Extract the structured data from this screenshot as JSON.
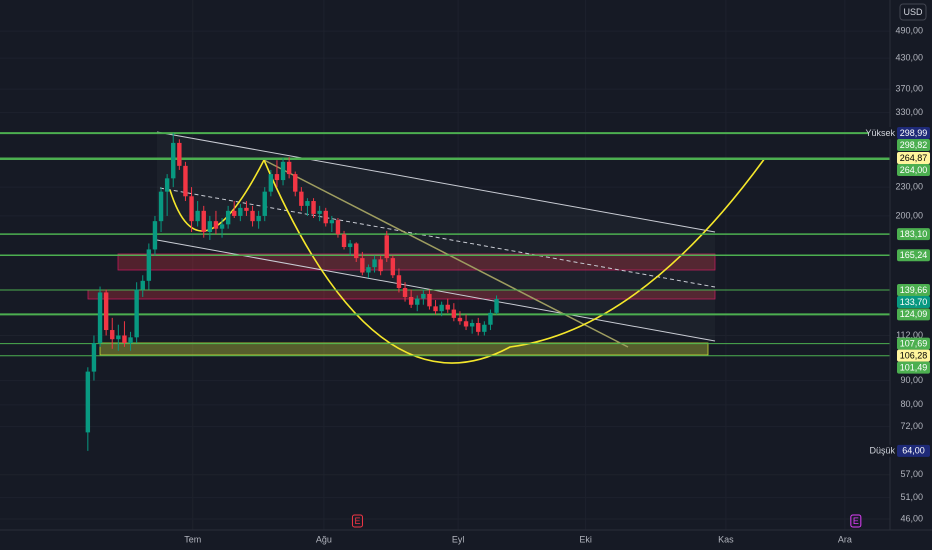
{
  "chart_data": {
    "type": "candlestick",
    "currency": "USD",
    "log_scale": true,
    "grid": true,
    "up_color": "#089981",
    "down_color": "#f23645",
    "ylim": [
      43.6,
      570
    ],
    "yticks": [
      {
        "value": 490,
        "label": "490,00"
      },
      {
        "value": 430,
        "label": "430,00"
      },
      {
        "value": 370,
        "label": "370,00"
      },
      {
        "value": 330,
        "label": "330,00"
      },
      {
        "value": 230,
        "label": "230,00"
      },
      {
        "value": 200,
        "label": "200,00"
      },
      {
        "value": 112,
        "label": "112,00"
      },
      {
        "value": 90,
        "label": "90,00"
      },
      {
        "value": 80,
        "label": "80,00"
      },
      {
        "value": 72,
        "label": "72,00"
      },
      {
        "value": 57,
        "label": "57,00"
      },
      {
        "value": 51,
        "label": "51,00"
      },
      {
        "value": 46,
        "label": "46,00"
      }
    ],
    "xlim": [
      -14.4,
      131.5
    ],
    "xticks": [
      {
        "value": 17.2,
        "label": "Tem"
      },
      {
        "value": 38.7,
        "label": "Ağu"
      },
      {
        "value": 60.7,
        "label": "Eyl"
      },
      {
        "value": 81.6,
        "label": "Eki"
      },
      {
        "value": 104.6,
        "label": "Kas"
      },
      {
        "value": 124.1,
        "label": "Ara"
      }
    ],
    "open": [
      70,
      94,
      108,
      138,
      115,
      110,
      112,
      108,
      111,
      140,
      146,
      170,
      195,
      225,
      240,
      285,
      255,
      220,
      195,
      205,
      185,
      195,
      188,
      192,
      205,
      200,
      208,
      205,
      195,
      200,
      225,
      245,
      238,
      260,
      245,
      225,
      210,
      215,
      202,
      205,
      193,
      196,
      183,
      172,
      175,
      163,
      152,
      156,
      162,
      182,
      163,
      150,
      141,
      135,
      130,
      134,
      137,
      129,
      126,
      130,
      127,
      122,
      120,
      117,
      119,
      114,
      118,
      125
    ],
    "high": [
      96,
      112,
      142,
      140,
      122,
      118,
      120,
      114,
      145,
      150,
      175,
      200,
      230,
      245,
      299,
      290,
      260,
      230,
      215,
      210,
      200,
      205,
      198,
      210,
      215,
      212,
      215,
      210,
      205,
      230,
      250,
      262,
      265,
      266,
      248,
      230,
      218,
      218,
      210,
      208,
      200,
      198,
      186,
      178,
      176,
      168,
      158,
      165,
      165,
      186,
      165,
      155,
      145,
      140,
      136,
      140,
      140,
      133,
      132,
      134,
      131,
      126,
      124,
      121,
      122,
      120,
      127,
      136
    ],
    "low": [
      64,
      90,
      106,
      112,
      105,
      104,
      106,
      104,
      108,
      135,
      140,
      165,
      185,
      200,
      230,
      250,
      215,
      185,
      190,
      180,
      178,
      183,
      180,
      188,
      198,
      195,
      200,
      190,
      188,
      195,
      220,
      230,
      232,
      240,
      220,
      205,
      200,
      198,
      195,
      190,
      185,
      180,
      170,
      165,
      160,
      150,
      148,
      152,
      150,
      160,
      148,
      138,
      132,
      128,
      126,
      130,
      127,
      124,
      123,
      125,
      120,
      118,
      115,
      113,
      112,
      112,
      115,
      124
    ],
    "close": [
      94,
      108,
      138,
      115,
      110,
      112,
      108,
      111,
      140,
      146,
      170,
      195,
      225,
      240,
      285,
      255,
      220,
      195,
      205,
      185,
      195,
      188,
      192,
      205,
      200,
      208,
      205,
      195,
      200,
      225,
      245,
      238,
      260,
      245,
      225,
      210,
      215,
      202,
      205,
      193,
      196,
      183,
      172,
      175,
      163,
      152,
      156,
      162,
      153,
      163,
      150,
      141,
      135,
      130,
      134,
      137,
      129,
      126,
      130,
      127,
      122,
      120,
      117,
      119,
      114,
      118,
      125,
      133.7
    ],
    "levels": [
      {
        "value": 298.82,
        "label": "298,82",
        "color": "#4caf50",
        "text_color": "#ffffff",
        "line": true,
        "line_width": 2
      },
      {
        "value": 264.87,
        "label": "264,87",
        "color": "#fff59d",
        "text_color": "#000000",
        "line": false,
        "line_width": 0
      },
      {
        "value": 264,
        "label": "264,00",
        "color": "#4caf50",
        "text_color": "#ffffff",
        "line": true,
        "line_width": 2.5
      },
      {
        "value": 183.1,
        "label": "183,10",
        "color": "#4caf50",
        "text_color": "#ffffff",
        "line": true,
        "line_width": 1.5
      },
      {
        "value": 165.24,
        "label": "165,24",
        "color": "#4caf50",
        "text_color": "#ffffff",
        "line": true,
        "line_width": 1.5
      },
      {
        "value": 139.66,
        "label": "139,66",
        "color": "#4caf50",
        "text_color": "#ffffff",
        "line": true,
        "line_width": 1
      },
      {
        "value": 133.7,
        "label": "133,70",
        "color": "#089981",
        "text_color": "#ffffff",
        "line": false,
        "line_width": 0
      },
      {
        "value": 124.09,
        "label": "124,09",
        "color": "#4caf50",
        "text_color": "#ffffff",
        "line": true,
        "line_width": 2
      },
      {
        "value": 107.69,
        "label": "107,69",
        "color": "#4caf50",
        "text_color": "#ffffff",
        "line": true,
        "line_width": 1
      },
      {
        "value": 106.28,
        "label": "106,28",
        "color": "#fff59d",
        "text_color": "#000000",
        "line": false,
        "line_width": 0
      },
      {
        "value": 101.49,
        "label": "101,49",
        "color": "#4caf50",
        "text_color": "#ffffff",
        "line": true,
        "line_width": 1
      }
    ],
    "extremes": [
      {
        "name": "Yüksek",
        "value": 298.99,
        "label": "298,99",
        "color": "#1e2a78"
      },
      {
        "name": "Düşük",
        "value": 64,
        "label": "64,00",
        "color": "#1e2a78"
      }
    ],
    "earnings_markers": [
      {
        "x": 44.2,
        "label": "E",
        "color": "#f23645"
      },
      {
        "x": 125.9,
        "label": "E",
        "color": "#e040fb"
      }
    ]
  }
}
